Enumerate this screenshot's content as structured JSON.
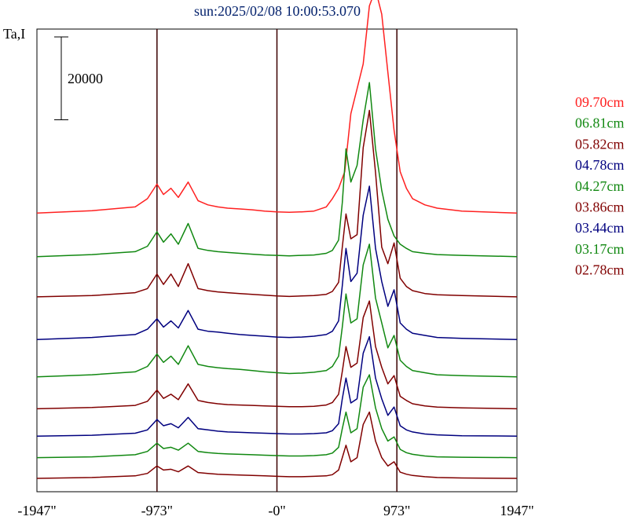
{
  "chart_data": {
    "type": "line",
    "title": "sun:2025/02/08 10:00:53.070",
    "ylabel": "Ta,I",
    "xlabel": "",
    "scale_bar_label": "20000",
    "x_ticks": [
      "-1947\"",
      "-973\"",
      "-0\"",
      "973\"",
      "1947\""
    ],
    "x_tick_values": [
      -1947,
      -973,
      0,
      973,
      1947
    ],
    "xlim": [
      -1947,
      1947
    ],
    "vertical_reference_lines": [
      -973,
      0,
      973
    ],
    "scale_bar_value": 20000,
    "ylim": [
      0,
      105000
    ],
    "grid": false,
    "legend_position": "right",
    "colors": {
      "title": "#001f6b",
      "axis": "#000000",
      "red": "#ff2020",
      "green": "#118811",
      "maroon": "#800000",
      "blue": "#00007f"
    },
    "series": [
      {
        "name": "09.70cm",
        "color": "#ff2020",
        "offset": 64000,
        "x": [
          -1947,
          -1500,
          -1150,
          -1050,
          -973,
          -920,
          -860,
          -800,
          -720,
          -640,
          -560,
          -480,
          -400,
          -300,
          -200,
          -100,
          0,
          100,
          200,
          300,
          400,
          450,
          500,
          550,
          600,
          650,
          700,
          750,
          800,
          850,
          900,
          950,
          1000,
          1050,
          1100,
          1200,
          1300,
          1500,
          1947
        ],
        "y": [
          0,
          600,
          1500,
          3500,
          7000,
          4500,
          6000,
          3800,
          7500,
          3000,
          2000,
          1500,
          1200,
          1000,
          800,
          500,
          300,
          200,
          300,
          500,
          1500,
          3500,
          6000,
          10000,
          24000,
          30000,
          36000,
          50000,
          54000,
          48000,
          34000,
          20000,
          10000,
          6000,
          3500,
          2000,
          1200,
          500,
          0
        ]
      },
      {
        "name": "06.81cm",
        "color": "#118811",
        "offset": 53500,
        "x": [
          -1947,
          -1500,
          -1150,
          -1050,
          -973,
          -920,
          -860,
          -800,
          -720,
          -640,
          -560,
          -480,
          -400,
          -300,
          -200,
          -100,
          0,
          100,
          200,
          300,
          400,
          450,
          500,
          530,
          560,
          600,
          650,
          700,
          750,
          800,
          850,
          900,
          950,
          1000,
          1050,
          1100,
          1200,
          1300,
          1500,
          1947
        ],
        "y": [
          0,
          500,
          1200,
          2500,
          6000,
          3500,
          5500,
          3000,
          8000,
          2000,
          1500,
          1200,
          1000,
          800,
          600,
          400,
          300,
          200,
          300,
          400,
          800,
          1500,
          4000,
          13000,
          26000,
          18000,
          22000,
          33000,
          42000,
          26000,
          16000,
          9000,
          5000,
          3000,
          2000,
          1200,
          800,
          500,
          300,
          0
        ]
      },
      {
        "name": "05.82cm",
        "color": "#800000",
        "offset": 43800,
        "x": [
          -1947,
          -1500,
          -1150,
          -1050,
          -973,
          -920,
          -860,
          -800,
          -720,
          -640,
          -560,
          -480,
          -400,
          -300,
          -200,
          -100,
          0,
          100,
          200,
          300,
          400,
          450,
          500,
          530,
          560,
          600,
          650,
          700,
          750,
          800,
          850,
          900,
          950,
          1000,
          1050,
          1100,
          1200,
          1300,
          1500,
          1947
        ],
        "y": [
          0,
          300,
          1000,
          2000,
          5500,
          3000,
          5500,
          2500,
          8000,
          2000,
          1500,
          1200,
          1000,
          800,
          600,
          400,
          200,
          100,
          200,
          300,
          600,
          1300,
          3500,
          12000,
          20000,
          14000,
          15000,
          36000,
          45000,
          30000,
          12000,
          8000,
          13000,
          4500,
          2500,
          1500,
          800,
          500,
          300,
          0
        ]
      },
      {
        "name": "04.78cm",
        "color": "#00007f",
        "offset": 33500,
        "x": [
          -1947,
          -1500,
          -1150,
          -1050,
          -973,
          -920,
          -860,
          -800,
          -720,
          -640,
          -560,
          -480,
          -400,
          -300,
          -200,
          -100,
          0,
          100,
          200,
          300,
          400,
          450,
          500,
          530,
          560,
          600,
          650,
          700,
          750,
          800,
          850,
          900,
          950,
          1000,
          1050,
          1100,
          1200,
          1300,
          1500,
          1947
        ],
        "y": [
          0,
          500,
          1200,
          2500,
          5000,
          3000,
          4500,
          2800,
          7000,
          2500,
          2000,
          1800,
          1500,
          1200,
          1000,
          800,
          600,
          500,
          600,
          800,
          1200,
          2000,
          4500,
          13000,
          22000,
          14000,
          16000,
          30000,
          37000,
          22000,
          14000,
          8000,
          12000,
          4000,
          2500,
          1500,
          1000,
          500,
          300,
          0
        ]
      },
      {
        "name": "04.27cm",
        "color": "#118811",
        "offset": 24500,
        "x": [
          -1947,
          -1500,
          -1150,
          -1050,
          -973,
          -920,
          -860,
          -800,
          -720,
          -640,
          -560,
          -480,
          -400,
          -300,
          -200,
          -100,
          0,
          100,
          200,
          300,
          400,
          450,
          500,
          530,
          560,
          600,
          650,
          700,
          750,
          800,
          850,
          900,
          950,
          1000,
          1050,
          1100,
          1200,
          1300,
          1500,
          1947
        ],
        "y": [
          0,
          500,
          1200,
          2500,
          5500,
          3500,
          5000,
          3000,
          7500,
          3000,
          2500,
          2200,
          2000,
          1800,
          1500,
          1200,
          1000,
          800,
          900,
          1100,
          1500,
          2500,
          5000,
          12000,
          20000,
          13000,
          14000,
          27000,
          32000,
          19000,
          13000,
          7000,
          10000,
          4000,
          2500,
          1500,
          1000,
          500,
          300,
          0
        ]
      },
      {
        "name": "03.86cm",
        "color": "#800000",
        "offset": 16800,
        "x": [
          -1947,
          -1500,
          -1150,
          -1050,
          -973,
          -920,
          -860,
          -800,
          -720,
          -640,
          -560,
          -480,
          -400,
          -300,
          -200,
          -100,
          0,
          100,
          200,
          300,
          400,
          450,
          500,
          530,
          560,
          600,
          650,
          700,
          750,
          800,
          850,
          900,
          950,
          1000,
          1050,
          1100,
          1200,
          1300,
          1500,
          1947
        ],
        "y": [
          0,
          300,
          800,
          1800,
          4500,
          2500,
          3500,
          2200,
          6000,
          2000,
          1500,
          1200,
          1000,
          900,
          800,
          700,
          600,
          500,
          500,
          600,
          900,
          1500,
          3500,
          9000,
          15000,
          10000,
          11000,
          22000,
          26000,
          15000,
          10000,
          6000,
          8000,
          3000,
          2000,
          1200,
          700,
          400,
          200,
          0
        ]
      },
      {
        "name": "03.44cm",
        "color": "#00007f",
        "offset": 10200,
        "x": [
          -1947,
          -1500,
          -1150,
          -1050,
          -973,
          -920,
          -860,
          -800,
          -720,
          -640,
          -560,
          -480,
          -400,
          -300,
          -200,
          -100,
          0,
          100,
          200,
          300,
          400,
          450,
          500,
          530,
          560,
          600,
          650,
          700,
          750,
          800,
          850,
          900,
          950,
          1000,
          1050,
          1100,
          1200,
          1300,
          1500,
          1947
        ],
        "y": [
          0,
          200,
          700,
          1500,
          4000,
          2500,
          3000,
          2000,
          4500,
          1800,
          1500,
          1200,
          1000,
          900,
          800,
          700,
          600,
          500,
          500,
          600,
          800,
          1300,
          3000,
          9000,
          14000,
          8000,
          9000,
          20000,
          24000,
          14000,
          9000,
          5000,
          7000,
          2500,
          1500,
          1000,
          500,
          300,
          100,
          0
        ]
      },
      {
        "name": "03.17cm",
        "color": "#118811",
        "offset": 5000,
        "x": [
          -1947,
          -1500,
          -1150,
          -1050,
          -973,
          -920,
          -860,
          -800,
          -720,
          -640,
          -560,
          -480,
          -400,
          -300,
          -200,
          -100,
          0,
          100,
          200,
          300,
          400,
          450,
          500,
          530,
          560,
          600,
          650,
          700,
          750,
          800,
          850,
          900,
          950,
          1000,
          1050,
          1100,
          1200,
          1300,
          1500,
          1947
        ],
        "y": [
          0,
          200,
          700,
          1500,
          3500,
          2200,
          2500,
          1800,
          3500,
          1500,
          1200,
          1000,
          900,
          800,
          700,
          600,
          500,
          400,
          400,
          500,
          700,
          1100,
          2500,
          7000,
          11000,
          6000,
          7000,
          17000,
          20000,
          12000,
          7000,
          4000,
          5000,
          2000,
          1200,
          800,
          400,
          200,
          100,
          0
        ]
      },
      {
        "name": "02.78cm",
        "color": "#800000",
        "offset": 0,
        "x": [
          -1947,
          -1500,
          -1150,
          -1050,
          -973,
          -920,
          -860,
          -800,
          -720,
          -640,
          -560,
          -480,
          -400,
          -300,
          -200,
          -100,
          0,
          100,
          200,
          300,
          400,
          450,
          500,
          530,
          560,
          600,
          650,
          700,
          750,
          800,
          850,
          900,
          950,
          1000,
          1050,
          1100,
          1200,
          1300,
          1500,
          1947
        ],
        "y": [
          0,
          200,
          600,
          1200,
          3000,
          2000,
          2200,
          1600,
          3000,
          1400,
          1200,
          1000,
          900,
          800,
          700,
          600,
          500,
          400,
          400,
          500,
          600,
          900,
          2000,
          5000,
          8000,
          4000,
          5000,
          13000,
          16000,
          9000,
          5000,
          3000,
          4000,
          1500,
          1000,
          700,
          400,
          200,
          100,
          0
        ]
      }
    ]
  }
}
